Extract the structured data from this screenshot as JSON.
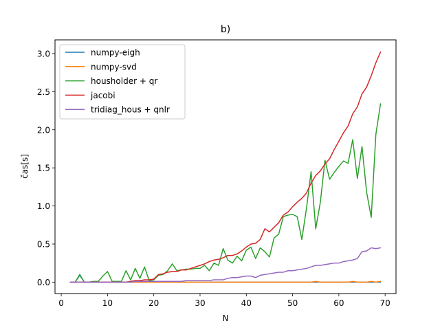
{
  "chart_data": {
    "type": "line",
    "title": "b)",
    "xlabel": "N",
    "ylabel": "čas[s]",
    "xlim": [
      -1.35,
      72.35
    ],
    "ylim": [
      -0.15,
      3.18
    ],
    "xticks": [
      0,
      10,
      20,
      30,
      40,
      50,
      60,
      70
    ],
    "yticks": [
      0.0,
      0.5,
      1.0,
      1.5,
      2.0,
      2.5,
      3.0
    ],
    "ytick_labels": [
      "0.0",
      "0.5",
      "1.0",
      "1.5",
      "2.0",
      "2.5",
      "3.0"
    ],
    "grid": false,
    "legend_position": "upper-left",
    "x": [
      2,
      3,
      4,
      5,
      6,
      7,
      8,
      9,
      10,
      11,
      12,
      13,
      14,
      15,
      16,
      17,
      18,
      19,
      20,
      21,
      22,
      23,
      24,
      25,
      26,
      27,
      28,
      29,
      30,
      31,
      32,
      33,
      34,
      35,
      36,
      37,
      38,
      39,
      40,
      41,
      42,
      43,
      44,
      45,
      46,
      47,
      48,
      49,
      50,
      51,
      52,
      53,
      54,
      55,
      56,
      57,
      58,
      59,
      60,
      61,
      62,
      63,
      64,
      65,
      66,
      67,
      68,
      69
    ],
    "series": [
      {
        "name": "numpy-eigh",
        "color": "#1f77b4",
        "values": [
          0,
          0,
          0.09,
          0,
          0,
          0,
          0,
          0,
          0,
          0,
          0,
          0,
          0,
          0,
          0,
          0,
          0,
          0,
          0,
          0,
          0,
          0,
          0,
          0,
          0,
          0,
          0,
          0,
          0,
          0,
          0,
          0,
          0,
          0,
          0,
          0,
          0,
          0,
          0,
          0,
          0,
          0,
          0,
          0,
          0,
          0,
          0,
          0,
          0,
          0,
          0,
          0,
          0,
          0,
          0,
          0,
          0,
          0,
          0,
          0,
          0,
          0,
          0,
          0,
          0,
          0,
          0,
          0
        ]
      },
      {
        "name": "numpy-svd",
        "color": "#ff7f0e",
        "values": [
          0,
          0,
          0,
          0,
          0,
          0,
          0,
          0,
          0,
          0,
          0,
          0,
          0,
          0,
          0,
          0,
          0,
          0,
          0,
          0,
          0,
          0,
          0,
          0,
          0,
          0,
          0,
          0,
          0,
          0,
          0,
          0,
          0,
          0,
          0,
          0,
          0,
          0,
          0,
          0,
          0,
          0,
          0,
          0,
          0,
          0,
          0,
          0,
          0,
          0,
          0,
          0,
          0,
          0.01,
          0,
          0,
          0,
          0,
          0,
          0,
          0,
          0.01,
          0,
          0,
          0,
          0.01,
          0,
          0.01
        ]
      },
      {
        "name": "housholder + qr",
        "color": "#2ca02c",
        "values": [
          0,
          0,
          0.1,
          0,
          0,
          0.01,
          0.01,
          0.08,
          0.14,
          0.01,
          0.01,
          0.01,
          0.15,
          0.03,
          0.18,
          0.05,
          0.2,
          0.02,
          0.03,
          0.09,
          0.1,
          0.15,
          0.24,
          0.15,
          0.16,
          0.17,
          0.17,
          0.18,
          0.18,
          0.22,
          0.15,
          0.25,
          0.22,
          0.44,
          0.29,
          0.25,
          0.34,
          0.28,
          0.42,
          0.46,
          0.31,
          0.45,
          0.4,
          0.33,
          0.58,
          0.63,
          0.86,
          0.88,
          0.89,
          0.86,
          0.56,
          0.97,
          1.45,
          0.7,
          1.05,
          1.6,
          1.35,
          1.44,
          1.52,
          1.59,
          1.56,
          1.87,
          1.36,
          1.78,
          1.18,
          0.85,
          1.94,
          2.34
        ]
      },
      {
        "name": "jacobi",
        "color": "#d62728",
        "values": [
          0,
          0,
          0,
          0,
          0,
          0,
          0,
          0,
          0,
          0,
          0,
          0,
          0,
          0.01,
          0.02,
          0.02,
          0.03,
          0.03,
          0.04,
          0.1,
          0.11,
          0.13,
          0.14,
          0.14,
          0.16,
          0.16,
          0.18,
          0.2,
          0.22,
          0.24,
          0.27,
          0.29,
          0.3,
          0.32,
          0.35,
          0.35,
          0.37,
          0.41,
          0.46,
          0.5,
          0.51,
          0.56,
          0.7,
          0.66,
          0.72,
          0.78,
          0.88,
          0.92,
          0.99,
          1.05,
          1.1,
          1.17,
          1.3,
          1.4,
          1.46,
          1.55,
          1.62,
          1.74,
          1.85,
          1.96,
          2.05,
          2.21,
          2.3,
          2.47,
          2.56,
          2.71,
          2.88,
          3.02
        ]
      },
      {
        "name": "tridiag_hous + qnlr",
        "color": "#9467bd",
        "values": [
          0,
          0,
          0,
          0,
          0,
          0,
          0,
          0,
          0,
          0,
          0,
          0,
          0,
          0,
          0.01,
          0.01,
          0.01,
          0.01,
          0.01,
          0.01,
          0.01,
          0.01,
          0.01,
          0.01,
          0.01,
          0.02,
          0.02,
          0.02,
          0.02,
          0.02,
          0.02,
          0.03,
          0.03,
          0.03,
          0.05,
          0.06,
          0.06,
          0.07,
          0.08,
          0.08,
          0.06,
          0.09,
          0.1,
          0.11,
          0.12,
          0.13,
          0.13,
          0.15,
          0.15,
          0.16,
          0.17,
          0.18,
          0.2,
          0.22,
          0.22,
          0.23,
          0.24,
          0.25,
          0.25,
          0.27,
          0.28,
          0.29,
          0.31,
          0.4,
          0.41,
          0.45,
          0.44,
          0.45
        ]
      }
    ]
  }
}
